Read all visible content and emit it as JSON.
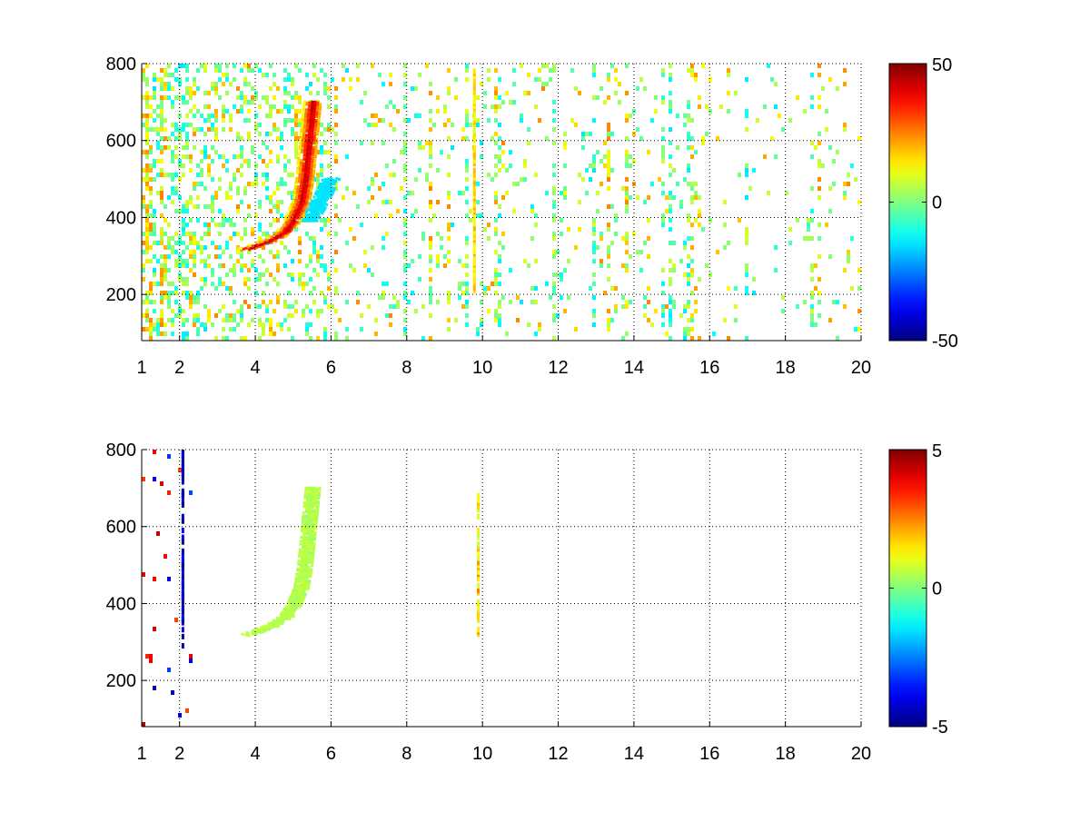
{
  "chart_data": [
    {
      "type": "heatmap",
      "title": "",
      "xlabel": "",
      "ylabel": "",
      "xlim": [
        1,
        20
      ],
      "ylim": [
        80,
        800
      ],
      "x_ticks": [
        1,
        2,
        4,
        6,
        8,
        10,
        12,
        14,
        16,
        18,
        20
      ],
      "x_tick_labels": [
        "1",
        "2",
        "4",
        "6",
        "8",
        "10",
        "12",
        "14",
        "16",
        "18",
        "20"
      ],
      "y_ticks": [
        200,
        400,
        600,
        800
      ],
      "y_tick_labels": [
        "200",
        "400",
        "600",
        "800"
      ],
      "grid": true,
      "colormap": "jet",
      "clim": [
        -50,
        50
      ],
      "colorbar_ticks": [
        -50,
        0,
        50
      ],
      "colorbar_tick_labels": [
        "-50",
        "0",
        "50"
      ],
      "background": "sparse noise spread over all x, dense below x=6",
      "features": [
        {
          "kind": "curve",
          "points": [
            [
              3.7,
              315
            ],
            [
              4.0,
              325
            ],
            [
              4.4,
              340
            ],
            [
              4.8,
              365
            ],
            [
              5.0,
              395
            ],
            [
              5.2,
              440
            ],
            [
              5.3,
              500
            ],
            [
              5.4,
              600
            ],
            [
              5.5,
              700
            ]
          ],
          "value": 45
        },
        {
          "kind": "curve",
          "points": [
            [
              5.4,
              390
            ],
            [
              5.6,
              420
            ],
            [
              5.8,
              460
            ],
            [
              6.0,
              500
            ]
          ],
          "value": -15
        },
        {
          "kind": "vertical_band",
          "x": 9.8,
          "y_range": [
            210,
            780
          ],
          "value": 15
        }
      ]
    },
    {
      "type": "heatmap",
      "title": "",
      "xlabel": "",
      "ylabel": "",
      "xlim": [
        1,
        20
      ],
      "ylim": [
        80,
        800
      ],
      "x_ticks": [
        1,
        2,
        4,
        6,
        8,
        10,
        12,
        14,
        16,
        18,
        20
      ],
      "x_tick_labels": [
        "1",
        "2",
        "4",
        "6",
        "8",
        "10",
        "12",
        "14",
        "16",
        "18",
        "20"
      ],
      "y_ticks": [
        200,
        400,
        600,
        800
      ],
      "y_tick_labels": [
        "200",
        "400",
        "600",
        "800"
      ],
      "grid": true,
      "colormap": "jet",
      "clim": [
        -5,
        5
      ],
      "colorbar_ticks": [
        -5,
        0,
        5
      ],
      "colorbar_tick_labels": [
        "-5",
        "0",
        "5"
      ],
      "background": "very sparse, mostly near x=1 to 2",
      "features": [
        {
          "kind": "curve",
          "points": [
            [
              3.7,
              315
            ],
            [
              4.0,
              325
            ],
            [
              4.4,
              340
            ],
            [
              4.8,
              365
            ],
            [
              5.0,
              395
            ],
            [
              5.2,
              440
            ],
            [
              5.3,
              500
            ],
            [
              5.4,
              600
            ],
            [
              5.5,
              700
            ]
          ],
          "value": 0.5
        },
        {
          "kind": "vertical_band",
          "x": 2.1,
          "y_range": [
            290,
            800
          ],
          "value": -4.5
        },
        {
          "kind": "vertical_band",
          "x": 9.9,
          "y_range": [
            320,
            680
          ],
          "value": 1.5
        }
      ]
    }
  ]
}
